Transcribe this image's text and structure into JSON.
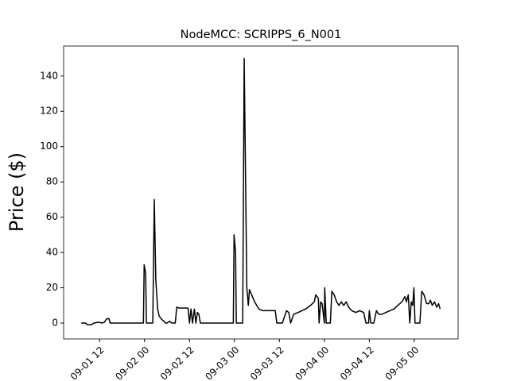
{
  "chart_data": {
    "type": "line",
    "title": "NodeMCC: SCRIPPS_6_N001",
    "y_label": "Price ($)",
    "color": "#000000",
    "x": [
      7.1,
      8.2,
      8.8,
      9.7,
      10.5,
      11.8,
      12.6,
      13.3,
      13.9,
      14.5,
      14.8,
      23.7,
      23.9,
      24.3,
      24.5,
      26.2,
      26.6,
      27,
      27.5,
      27.9,
      28.6,
      29.2,
      29.6,
      30,
      30.7,
      31.3,
      32.2,
      32.6,
      33.2,
      35.6,
      36,
      36.4,
      36.8,
      37.3,
      37.7,
      38.1,
      38.5,
      38.9,
      47.7,
      47.9,
      48.3,
      48.5,
      50.2,
      50.6,
      51.3,
      51.7,
      52,
      52.8,
      53.4,
      54.5,
      55.5,
      57.6,
      58.9,
      59.3,
      60.8,
      61.9,
      62.5,
      63,
      63.8,
      65,
      66,
      67,
      68.3,
      69.3,
      69.7,
      70.4,
      70.6,
      71,
      71.4,
      72,
      72.1,
      72.5,
      73.6,
      74,
      74.6,
      75.3,
      75.9,
      76.5,
      77.2,
      77.8,
      78.5,
      79.3,
      80.4,
      81.4,
      82.5,
      83.1,
      83.8,
      84,
      84.4,
      85.2,
      85.9,
      86.5,
      87.4,
      88.4,
      89.5,
      90.6,
      91.6,
      92.7,
      93.5,
      93.9,
      94.4,
      94.8,
      95.2,
      95.6,
      95.9,
      96.2,
      97.5,
      98,
      98.6,
      99.3,
      99.9,
      100.3,
      100.8,
      101.4,
      102,
      102.5,
      102.9
    ],
    "values": [
      0,
      0,
      -1,
      -1,
      0,
      0.5,
      0,
      0.5,
      2.5,
      2.5,
      0,
      0,
      33,
      28,
      0,
      0,
      70,
      25,
      8,
      4,
      2,
      1,
      0,
      0,
      1,
      0,
      0,
      9,
      8.5,
      8.5,
      0,
      8,
      0,
      8,
      0,
      6,
      5,
      0,
      0,
      50,
      40,
      0,
      0,
      150,
      20,
      10,
      19,
      15,
      12,
      8,
      7,
      7,
      7,
      0,
      0,
      7,
      6,
      0,
      5,
      6,
      7,
      8,
      10,
      12,
      16,
      14,
      0,
      12,
      11,
      0,
      20,
      0,
      0,
      18,
      16,
      12,
      10,
      12,
      10,
      12,
      9,
      7,
      6,
      7,
      6,
      0,
      0,
      7,
      0,
      0,
      7,
      5,
      5,
      6,
      7,
      8,
      10,
      12,
      15,
      12,
      16,
      0,
      12,
      10,
      20,
      0,
      0,
      18,
      16,
      11,
      11,
      13,
      10,
      12,
      9,
      11,
      8
    ],
    "xlim": [
      2.4,
      107.7
    ],
    "xticks": [
      {
        "value": 12,
        "label": "09-01 12"
      },
      {
        "value": 24,
        "label": "09-02 00"
      },
      {
        "value": 36,
        "label": "09-02 12"
      },
      {
        "value": 48,
        "label": "09-03 00"
      },
      {
        "value": 60,
        "label": "09-03 12"
      },
      {
        "value": 72,
        "label": "09-04 00"
      },
      {
        "value": 84,
        "label": "09-04 12"
      },
      {
        "value": 96,
        "label": "09-05 00"
      }
    ],
    "ylim": [
      -9,
      157
    ],
    "yticks": [
      0,
      20,
      40,
      60,
      80,
      100,
      120,
      140
    ]
  }
}
